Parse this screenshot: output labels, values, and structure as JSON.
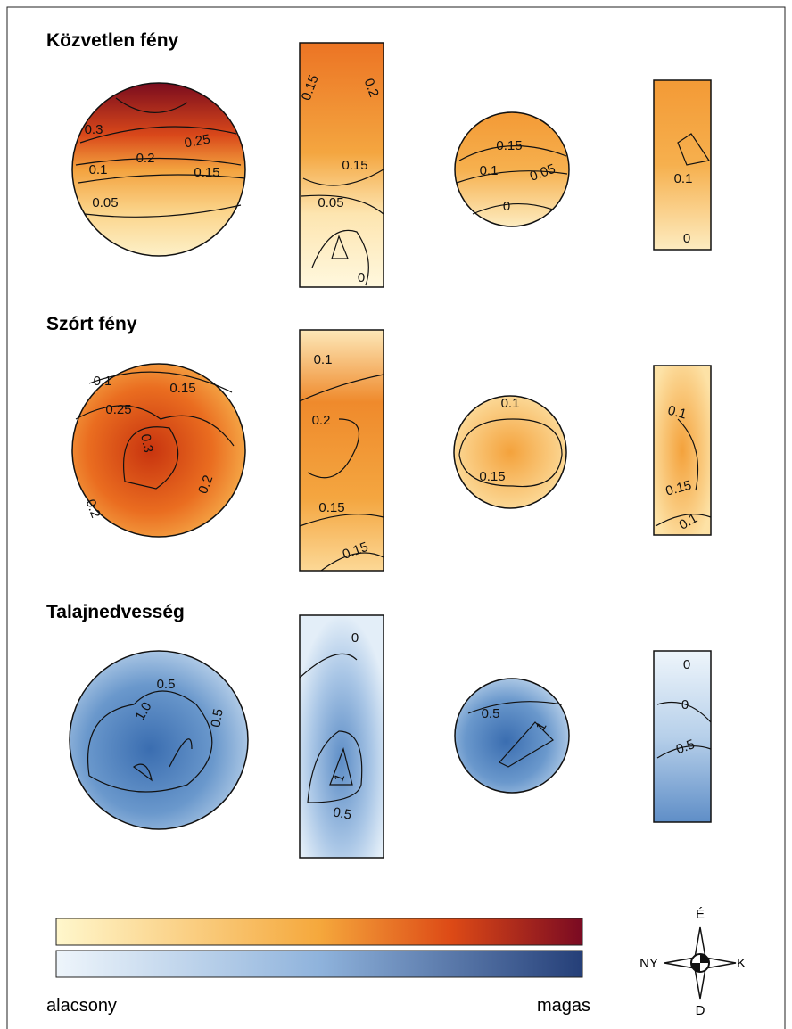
{
  "sections": [
    {
      "title": "Közvetlen fény",
      "panels": [
        {
          "labels": [
            "0.3",
            "0.25",
            "0.2",
            "0.15",
            "0.1",
            "0.05"
          ]
        },
        {
          "labels": [
            "0.15",
            "0.2",
            "0.15",
            "0.05",
            "0"
          ]
        },
        {
          "labels": [
            "0.15",
            "0.1",
            "0.05",
            "0"
          ]
        },
        {
          "labels": [
            "0.1",
            "0"
          ]
        }
      ]
    },
    {
      "title": "Szórt fény",
      "panels": [
        {
          "labels": [
            "0.1",
            "0.15",
            "0.25",
            "0.3",
            "0.2",
            "0.2"
          ]
        },
        {
          "labels": [
            "0.1",
            "0.2",
            "0.15",
            "0.15"
          ]
        },
        {
          "labels": [
            "0.1",
            "0.15"
          ]
        },
        {
          "labels": [
            "0.1",
            "0.15",
            "0.1"
          ]
        }
      ]
    },
    {
      "title": "Talajnedvesség",
      "panels": [
        {
          "labels": [
            "0.5",
            "1.0",
            "0.5"
          ]
        },
        {
          "labels": [
            "0",
            "1",
            "0.5"
          ]
        },
        {
          "labels": [
            "0.5",
            "1"
          ]
        },
        {
          "labels": [
            "0",
            "0",
            "0.5"
          ]
        }
      ]
    }
  ],
  "legend": {
    "low": "alacsony",
    "high": "magas"
  },
  "compass": {
    "north": "É",
    "west": "NY",
    "east": "K",
    "south": "D"
  }
}
